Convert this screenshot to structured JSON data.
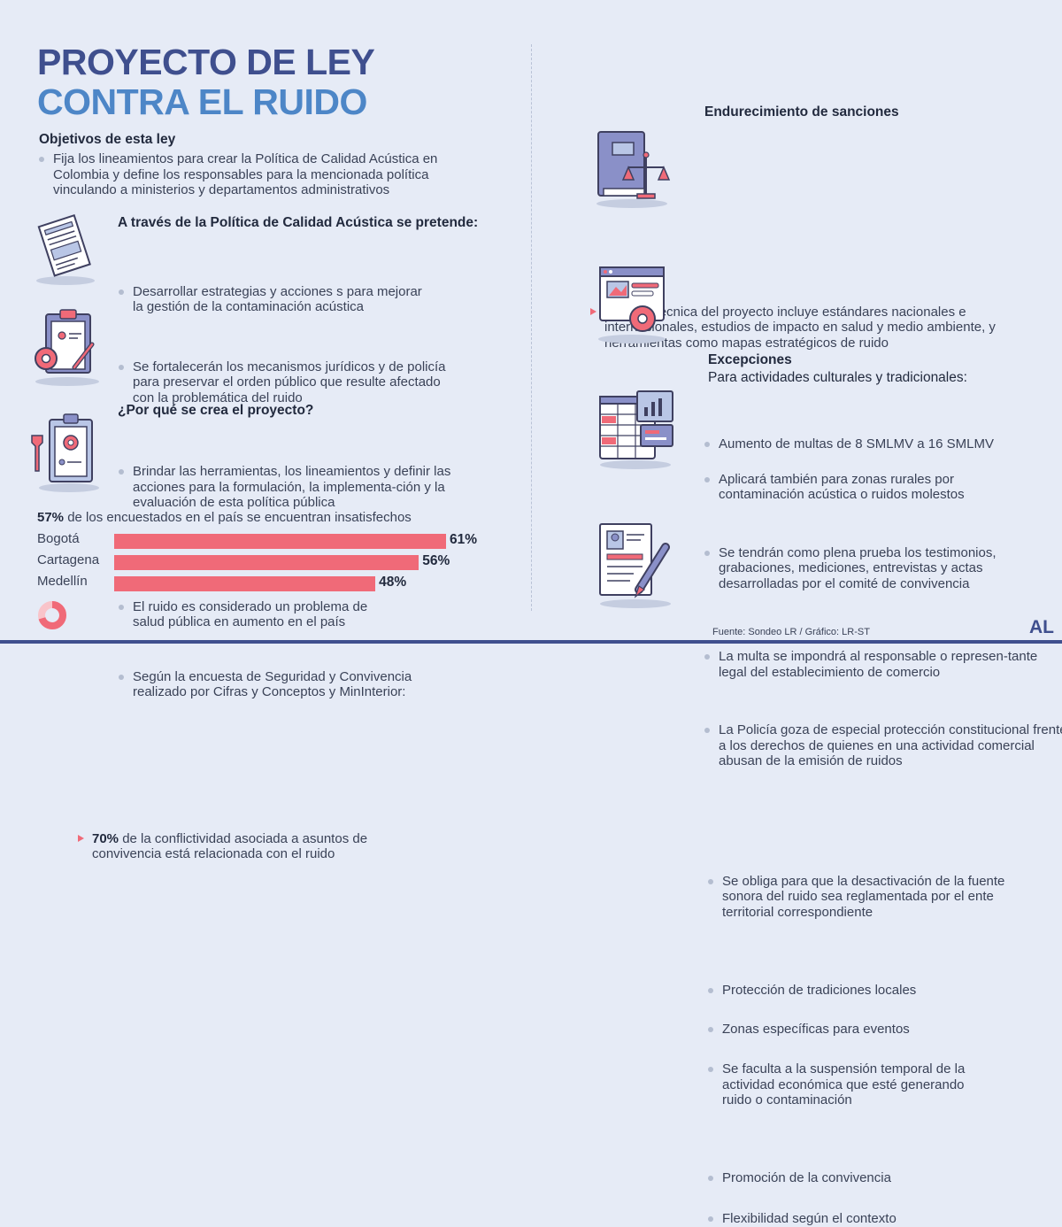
{
  "title": {
    "line1": "PROYECTO DE LEY",
    "line2": "CONTRA EL RUIDO"
  },
  "objetivos": {
    "heading": "Objetivos de esta ley",
    "text": "Fija los lineamientos para crear la Política de Calidad Acústica en Colombia y define los responsables para la mencionada política vinculando a ministerios y departamentos administrativos"
  },
  "politica": {
    "heading": "A través de la Política de Calidad Acústica se pretende:",
    "items": [
      "Desarrollar estrategias y acciones s para mejorar la gestión de la contaminación acústica",
      "Se fortalecerán los mecanismos jurídicos y de policía para preservar el orden público que resulte afectado con la problemática del ruido",
      "Brindar las herramientas, los lineamientos y definir las acciones para la formulación, la implementa-ción y la evaluación de esta política pública"
    ]
  },
  "porque": {
    "heading": "¿Por qué se crea el proyecto?",
    "items": [
      "El ruido es considerado un problema de salud pública en aumento en el país",
      "Según la encuesta de Seguridad y Convivencia realizado por Cifras y Conceptos y MinInterior:"
    ]
  },
  "encuesta": {
    "pct": "57%",
    "text": " de los encuestados en el país se encuentran insatisfechos"
  },
  "chart_data": {
    "type": "bar",
    "categories": [
      "Bogotá",
      "Cartagena",
      "Medellín"
    ],
    "values": [
      61,
      56,
      48
    ],
    "labels": [
      "61%",
      "56%",
      "48%"
    ],
    "color": "#f06a78"
  },
  "conflictividad": {
    "pct": "70%",
    "value": 70,
    "text": " de la conflictividad asociada a asuntos de convivencia está relacionada con el ruido"
  },
  "base_tecnica": "La base técnica del proyecto incluye estándares nacionales e internacionales, estudios de impacto en salud y medio ambiente, y herramientas como mapas estratégicos de ruido",
  "sanciones": {
    "heading": "Endurecimiento de sanciones",
    "items": [
      "Aumento de multas de 8 SMLMV a 16 SMLMV",
      "Aplicará también para  zonas rurales por contaminación acústica o ruidos molestos",
      "Se tendrán como plena prueba los testimonios, grabaciones, mediciones, entrevistas y actas desarrolladas por el comité de convivencia",
      "La multa se impondrá al responsable o represen-tante legal del establecimiento de comercio",
      "La Policía goza de especial protección constitucional frente a los derechos de quienes  en una actividad comercial abusan de la emisión de ruidos"
    ]
  },
  "excepciones": {
    "heading": "Excepciones",
    "subheading": "Para actividades culturales y tradicionales:",
    "items": [
      "Se obliga para que la desactivación de la fuente sonora del ruido sea reglamentada por el ente territorial correspondiente",
      "Protección de tradiciones locales",
      "Zonas específicas para eventos",
      "Se faculta a la suspensión temporal de la actividad económica que esté generando ruido o contaminación",
      "Promoción de la convivencia",
      "Flexibilidad según el contexto"
    ]
  },
  "source": "Fuente: Sondeo LR / Gráfico: LR-ST",
  "logo": "AL",
  "colors": {
    "accent": "#f06a78",
    "title_dark": "#3f4f8e",
    "title_light": "#4d86c7",
    "background": "#e6ebf6"
  },
  "icons": [
    "document-icon",
    "clipboard-gear-icon",
    "clipboard-wrench-icon",
    "law-book-scales-icon",
    "browser-gear-icon",
    "spreadsheet-chart-icon",
    "resume-pen-icon",
    "donut-icon"
  ]
}
